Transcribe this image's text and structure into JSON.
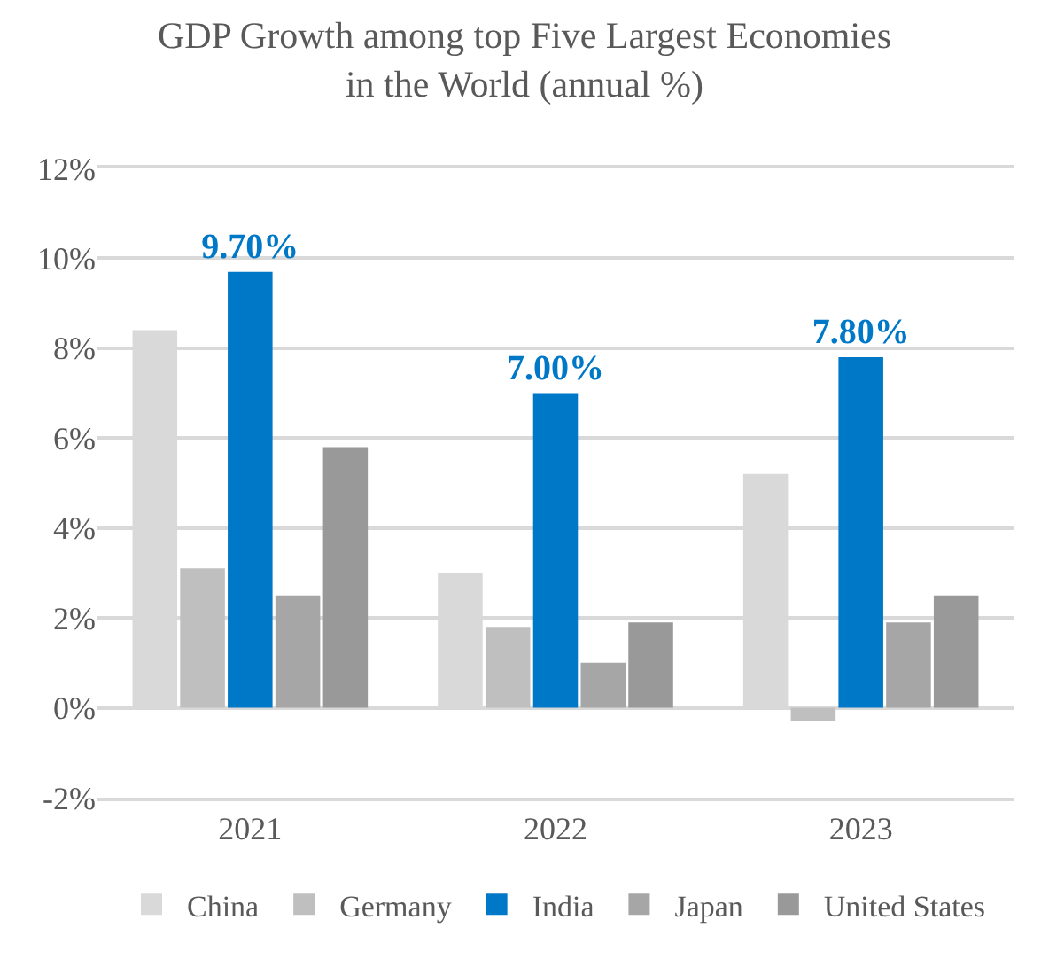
{
  "chart_data": {
    "type": "bar",
    "title": "GDP Growth among top Five Largest Economies\nin the World (annual %)",
    "categories": [
      "2021",
      "2022",
      "2023"
    ],
    "series": [
      {
        "name": "China",
        "color": "#d9d9d9",
        "values": [
          8.4,
          3.0,
          5.2
        ]
      },
      {
        "name": "Germany",
        "color": "#bfbfbf",
        "values": [
          3.1,
          1.8,
          -0.3
        ]
      },
      {
        "name": "India",
        "color": "#0078c8",
        "values": [
          9.7,
          7.0,
          7.8
        ],
        "value_labels": [
          "9.70%",
          "7.00%",
          "7.80%"
        ]
      },
      {
        "name": "Japan",
        "color": "#a6a6a6",
        "values": [
          2.5,
          1.0,
          1.9
        ]
      },
      {
        "name": "United States",
        "color": "#999999",
        "values": [
          5.8,
          1.9,
          2.5
        ]
      }
    ],
    "ylim": [
      -2,
      12
    ],
    "yticks": [
      {
        "value": -2,
        "label": "-2%"
      },
      {
        "value": 0,
        "label": "0%"
      },
      {
        "value": 2,
        "label": "2%"
      },
      {
        "value": 4,
        "label": "4%"
      },
      {
        "value": 6,
        "label": "6%"
      },
      {
        "value": 8,
        "label": "8%"
      },
      {
        "value": 10,
        "label": "10%"
      },
      {
        "value": 12,
        "label": "12%"
      }
    ],
    "grid": "y",
    "legend": "bottom"
  }
}
